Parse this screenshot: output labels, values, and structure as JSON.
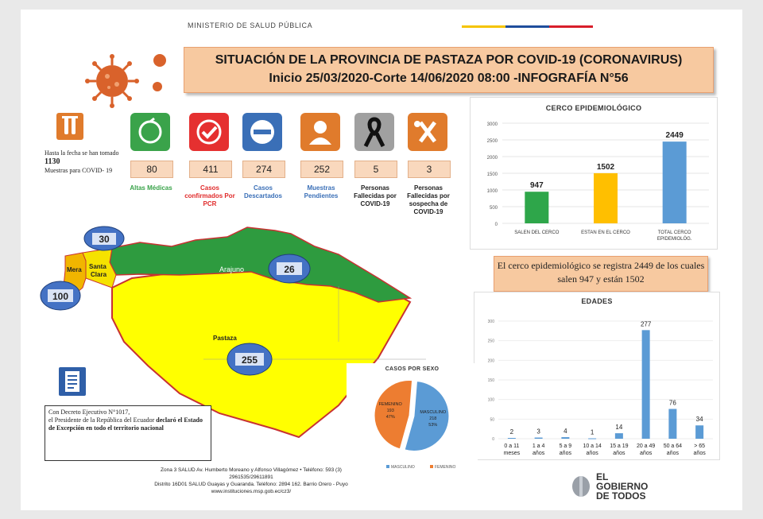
{
  "header": {
    "ministry": "MINISTERIO DE SALUD PÚBLICA",
    "title_line1": "SITUACIÓN DE LA PROVINCIA DE PASTAZA POR COVID-19 (CORONAVIRUS)",
    "title_line2": "Inicio 25/03/2020-Corte 14/06/2020 08:00 -INFOGRAFÍA N°56"
  },
  "tests": {
    "prefix": "Hasta la fecha se han tomado",
    "count": "1130",
    "suffix": "Muestras para COVID- 19"
  },
  "stats": [
    {
      "value": "80",
      "label": "Altas Médicas",
      "color": "#3aa34a",
      "icon": "recovery-icon"
    },
    {
      "value": "411",
      "label": "Casos confirmados Por PCR",
      "color": "#e02a2a",
      "icon": "check-icon"
    },
    {
      "value": "274",
      "label": "Casos Descartados",
      "color": "#3a6fb7",
      "icon": "minus-icon"
    },
    {
      "value": "252",
      "label": "Muestras Pendientes",
      "color": "#3a6fb7",
      "icon": "doctor-icon"
    },
    {
      "value": "5",
      "label": "Personas Fallecidas por COVID-19",
      "color": "#222222",
      "icon": "ribbon-icon"
    },
    {
      "value": "3",
      "label": "Personas Fallecidas por sospecha de COVID-19",
      "color": "#222222",
      "icon": "cross-icon"
    }
  ],
  "map": {
    "regions": [
      {
        "name": "Arajuno",
        "count": "26"
      },
      {
        "name": "Pastaza",
        "count": "255"
      },
      {
        "name": "Mera",
        "count": "100"
      },
      {
        "name": "Santa Clara",
        "count": "30"
      }
    ]
  },
  "decree": {
    "line1": "Con Decreto Ejecutivo N°1017,",
    "line2": "el Presidente de la República del Ecuador",
    "bold1": "declaró el Estado",
    "bold2": "de Excepción en todo el territorio nacional"
  },
  "cerco_note": "El cerco epidemiológico se registra 2449 de los cuales salen 947 y están 1502",
  "footer": {
    "l1": "Zona 3 SALUD Av. Humberto Moreano y Alfonso Villagómez • Teléfono: 593 (3)",
    "l2": "2961535/29611891",
    "l3": "Distrito 16D01 SALUD Guayas y Guaranda. Teléfono: 2894 162. Barrio Orero - Puyo",
    "l4": "www.instituciones.msp.gob.ec/cz3/"
  },
  "gobierno": {
    "l1": "EL",
    "l2": "GOBIERNO",
    "l3": "DE TODOS"
  },
  "colors": {
    "accent": "#f7c9a0",
    "green": "#2ea64a",
    "yellow": "#ffbf00",
    "blue": "#5b9bd5",
    "orange": "#ed7d31"
  },
  "chart_data": [
    {
      "type": "bar",
      "title": "CERCO EPIDEMIOLÓGICO",
      "categories": [
        "SALEN DEL CERCO",
        "ESTAN EN EL CERCO",
        "TOTAL CERCO EPIDEMIOLÓG."
      ],
      "values": [
        947,
        1502,
        2449
      ],
      "ylim": [
        0,
        3000
      ],
      "yticks": [
        "0",
        "500",
        "1000",
        "1500",
        "2000",
        "2500",
        "3000"
      ],
      "colors": [
        "#2ea64a",
        "#ffbf00",
        "#5b9bd5"
      ]
    },
    {
      "type": "bar",
      "title": "EDADES",
      "categories": [
        "0 a 11 meses",
        "1 a 4 años",
        "5 a 9 años",
        "10 a 14 años",
        "15 a 19 años",
        "20 a 49 años",
        "50 a 64 años",
        "> 65 años"
      ],
      "values": [
        2,
        3,
        4,
        1,
        14,
        277,
        76,
        34
      ],
      "ylim": [
        0,
        300
      ],
      "yticks": [
        "0",
        "50",
        "100",
        "150",
        "200",
        "250",
        "300"
      ],
      "color": "#5b9bd5"
    },
    {
      "type": "pie",
      "title": "CASOS POR SEXO",
      "slices": [
        {
          "name": "MASCULINO",
          "value": 218,
          "percent": "53%",
          "color": "#5b9bd5"
        },
        {
          "name": "FEMENINO",
          "value": 193,
          "percent": "47%",
          "color": "#ed7d31"
        }
      ],
      "legend": [
        "MASCULINO",
        "FEMENINO"
      ]
    }
  ]
}
